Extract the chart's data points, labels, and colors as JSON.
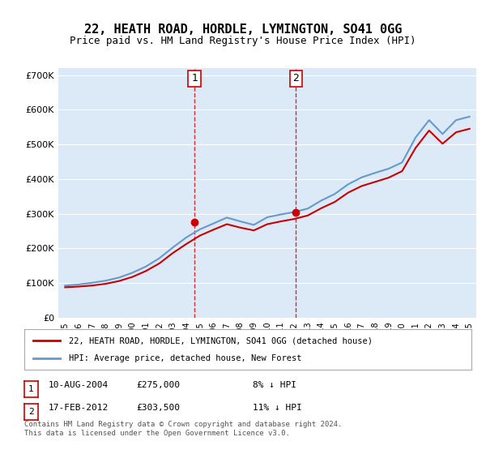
{
  "title": "22, HEATH ROAD, HORDLE, LYMINGTON, SO41 0GG",
  "subtitle": "Price paid vs. HM Land Registry's House Price Index (HPI)",
  "legend_line1": "22, HEATH ROAD, HORDLE, LYMINGTON, SO41 0GG (detached house)",
  "legend_line2": "HPI: Average price, detached house, New Forest",
  "table_row1": [
    "1",
    "10-AUG-2004",
    "£275,000",
    "8% ↓ HPI"
  ],
  "table_row2": [
    "2",
    "17-FEB-2012",
    "£303,500",
    "11% ↓ HPI"
  ],
  "footnote": "Contains HM Land Registry data © Crown copyright and database right 2024.\nThis data is licensed under the Open Government Licence v3.0.",
  "sale1_year": 2004.6,
  "sale2_year": 2012.12,
  "sale1_price": 275000,
  "sale2_price": 303500,
  "ylim": [
    0,
    720000
  ],
  "background_color": "#ffffff",
  "plot_bg_color": "#dce9f7",
  "grid_color": "#ffffff",
  "red_line_color": "#cc0000",
  "blue_line_color": "#6699cc",
  "vline_color": "#cc0000",
  "hpi_years": [
    1995,
    1996,
    1997,
    1998,
    1999,
    2000,
    2001,
    2002,
    2003,
    2004,
    2005,
    2006,
    2007,
    2008,
    2009,
    2010,
    2011,
    2012,
    2013,
    2014,
    2015,
    2016,
    2017,
    2018,
    2019,
    2020,
    2021,
    2022,
    2023,
    2024,
    2025
  ],
  "hpi_values": [
    93000,
    96000,
    101000,
    107000,
    116000,
    130000,
    148000,
    172000,
    203000,
    232000,
    255000,
    272000,
    289000,
    278000,
    268000,
    290000,
    298000,
    305000,
    315000,
    338000,
    357000,
    385000,
    405000,
    418000,
    430000,
    448000,
    520000,
    570000,
    530000,
    570000,
    580000
  ],
  "price_years": [
    1995,
    1996,
    1997,
    1998,
    1999,
    2000,
    2001,
    2002,
    2003,
    2004,
    2005,
    2006,
    2007,
    2008,
    2009,
    2010,
    2011,
    2012,
    2013,
    2014,
    2015,
    2016,
    2017,
    2018,
    2019,
    2020,
    2021,
    2022,
    2023,
    2024,
    2025
  ],
  "price_values": [
    88000,
    90000,
    93000,
    98000,
    106000,
    118000,
    135000,
    157000,
    187000,
    213000,
    237000,
    254000,
    270000,
    260000,
    252000,
    270000,
    278000,
    285000,
    295000,
    316000,
    334000,
    361000,
    380000,
    392000,
    404000,
    423000,
    490000,
    540000,
    502000,
    535000,
    545000
  ]
}
